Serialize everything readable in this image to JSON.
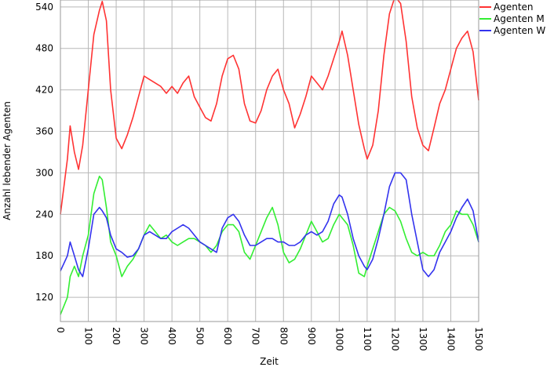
{
  "chart_data": {
    "type": "line",
    "title": "",
    "xlabel": "Zeit",
    "ylabel": "Anzahl lebender Agenten",
    "xlim": [
      0,
      1500
    ],
    "ylim": [
      85,
      550
    ],
    "x_ticks": [
      "0",
      "100",
      "200",
      "300",
      "400",
      "500",
      "600",
      "700",
      "800",
      "900",
      "1000",
      "1100",
      "1200",
      "1300",
      "1400",
      "1500"
    ],
    "y_ticks": [
      "120",
      "180",
      "240",
      "300",
      "360",
      "420",
      "480",
      "540"
    ],
    "grid": true,
    "legend_position": "top-right",
    "x": [
      0,
      25,
      35,
      50,
      65,
      80,
      100,
      120,
      140,
      150,
      165,
      180,
      200,
      220,
      240,
      260,
      280,
      300,
      320,
      340,
      360,
      380,
      400,
      420,
      440,
      460,
      480,
      500,
      520,
      540,
      560,
      580,
      600,
      620,
      640,
      660,
      680,
      700,
      720,
      740,
      760,
      780,
      800,
      820,
      840,
      860,
      880,
      900,
      920,
      940,
      960,
      980,
      1000,
      1010,
      1030,
      1050,
      1070,
      1090,
      1100,
      1120,
      1140,
      1160,
      1180,
      1200,
      1220,
      1240,
      1260,
      1280,
      1300,
      1320,
      1340,
      1360,
      1380,
      1400,
      1420,
      1440,
      1460,
      1480,
      1500
    ],
    "series": [
      {
        "name": "Agenten",
        "color": "#ff3333",
        "values": [
          240,
          320,
          368,
          330,
          305,
          340,
          420,
          500,
          535,
          548,
          520,
          420,
          350,
          335,
          355,
          380,
          410,
          440,
          435,
          430,
          425,
          415,
          425,
          415,
          430,
          440,
          410,
          395,
          380,
          375,
          400,
          440,
          465,
          470,
          450,
          400,
          375,
          372,
          390,
          420,
          440,
          450,
          420,
          400,
          365,
          385,
          410,
          440,
          430,
          420,
          440,
          465,
          490,
          505,
          470,
          420,
          370,
          335,
          320,
          340,
          390,
          470,
          530,
          555,
          545,
          490,
          410,
          365,
          340,
          332,
          365,
          400,
          420,
          450,
          480,
          495,
          505,
          475,
          405
        ]
      },
      {
        "name": "Agenten M",
        "color": "#33ee33",
        "values": [
          95,
          120,
          150,
          165,
          150,
          180,
          210,
          270,
          295,
          290,
          250,
          200,
          180,
          150,
          165,
          175,
          190,
          210,
          225,
          215,
          205,
          210,
          200,
          195,
          200,
          205,
          205,
          200,
          195,
          185,
          195,
          215,
          225,
          225,
          215,
          185,
          175,
          195,
          215,
          235,
          250,
          225,
          185,
          170,
          175,
          190,
          210,
          230,
          215,
          200,
          205,
          225,
          240,
          235,
          225,
          195,
          155,
          150,
          165,
          190,
          215,
          240,
          250,
          245,
          230,
          205,
          185,
          180,
          185,
          180,
          180,
          195,
          215,
          225,
          245,
          240,
          240,
          225,
          200
        ]
      },
      {
        "name": "Agenten W",
        "color": "#3333ee",
        "values": [
          158,
          180,
          200,
          180,
          160,
          150,
          190,
          240,
          250,
          245,
          235,
          210,
          190,
          185,
          178,
          180,
          190,
          210,
          215,
          210,
          205,
          205,
          215,
          220,
          225,
          220,
          210,
          200,
          195,
          190,
          185,
          220,
          235,
          240,
          230,
          210,
          195,
          195,
          200,
          205,
          205,
          200,
          200,
          195,
          195,
          200,
          210,
          215,
          210,
          215,
          230,
          255,
          268,
          265,
          240,
          205,
          180,
          165,
          160,
          175,
          205,
          240,
          280,
          300,
          300,
          290,
          240,
          200,
          160,
          150,
          160,
          185,
          200,
          215,
          235,
          250,
          262,
          245,
          200
        ]
      }
    ]
  }
}
